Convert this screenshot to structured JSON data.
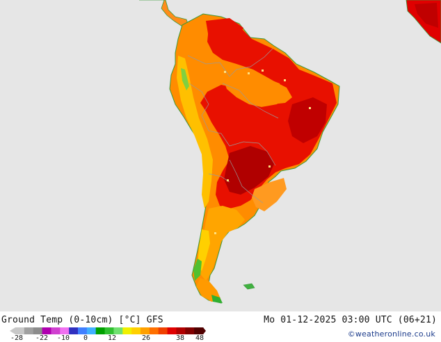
{
  "header": {
    "title": "Ground Temp (0-10cm) [°C] GFS",
    "datetime": "Mo 01-12-2025 03:00 UTC (06+21)",
    "credit": "©weatheronline.co.uk"
  },
  "legend": {
    "ticks": [
      "-28",
      "-22",
      "-10",
      "0",
      "12",
      "26",
      "38",
      "48"
    ],
    "colors": [
      "#c8c8c8",
      "#a0a0a0",
      "#8c8c8c",
      "#b000b0",
      "#d040d0",
      "#f070f0",
      "#3030c0",
      "#4080ff",
      "#40b0ff",
      "#00a000",
      "#30c030",
      "#70e070",
      "#f0f000",
      "#ffd000",
      "#ffa000",
      "#ff7000",
      "#f04000",
      "#e00000",
      "#b00000",
      "#800000",
      "#500000"
    ]
  },
  "map": {
    "region": "South America",
    "ocean_color": "#e6e6e6",
    "coast_color": "#3a9a3a",
    "border_color": "#9a9a9a"
  }
}
